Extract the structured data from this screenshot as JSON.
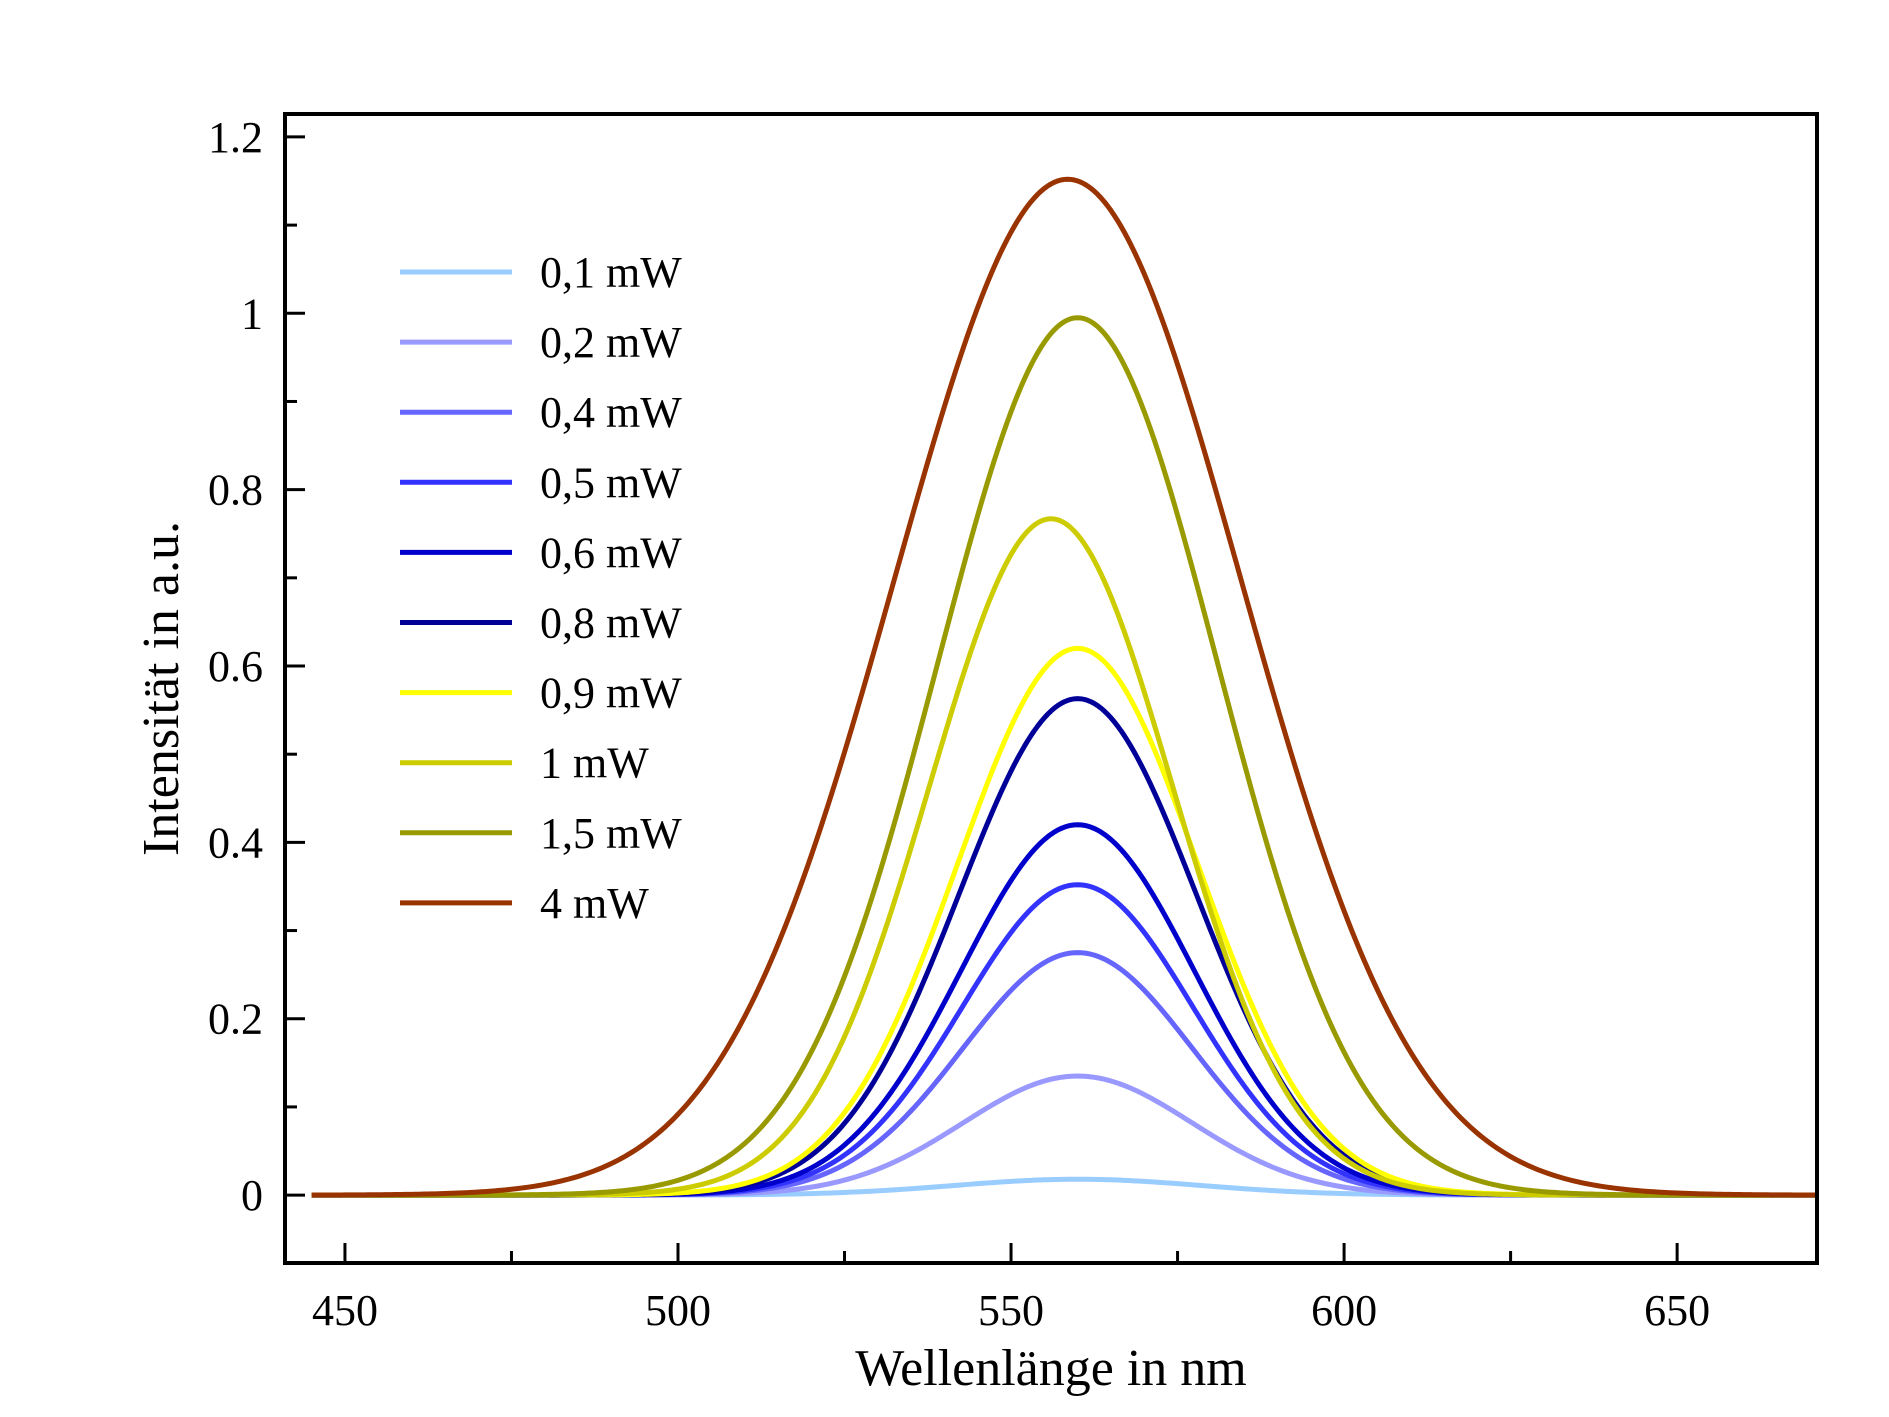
{
  "chart_data": {
    "type": "line",
    "title": "",
    "xlabel": "Wellenlänge in nm",
    "ylabel": "Intensität in a.u.",
    "xlim": [
      441,
      671
    ],
    "ylim": [
      -0.077,
      1.226
    ],
    "x_ticks": [
      450,
      500,
      550,
      600,
      650
    ],
    "x_minor_ticks": [
      475,
      525,
      575,
      625
    ],
    "y_ticks": [
      0,
      0.2,
      0.4,
      0.6,
      0.8,
      1,
      1.2
    ],
    "y_tick_labels": [
      "0",
      "0.2",
      "0.4",
      "0.6",
      "0.8",
      "1",
      "1.2"
    ],
    "y_minor_ticks": [
      0.1,
      0.3,
      0.5,
      0.7,
      0.9,
      1.1
    ],
    "grid": false,
    "legend_position": "upper-left",
    "series_model": "gaussian",
    "series": [
      {
        "name": "0,1 mW",
        "color": "#99ccff",
        "peak_x": 560,
        "peak_y": 0.018,
        "sigma": 18.5
      },
      {
        "name": "0,2 mW",
        "color": "#9999ff",
        "peak_x": 560,
        "peak_y": 0.135,
        "sigma": 17.2
      },
      {
        "name": "0,4 mW",
        "color": "#6666ff",
        "peak_x": 560,
        "peak_y": 0.275,
        "sigma": 17.2
      },
      {
        "name": "0,5 mW",
        "color": "#3333ff",
        "peak_x": 560,
        "peak_y": 0.352,
        "sigma": 17.3
      },
      {
        "name": "0,6 mW",
        "color": "#0000cc",
        "peak_x": 560,
        "peak_y": 0.42,
        "sigma": 17.5
      },
      {
        "name": "0,8 mW",
        "color": "#000099",
        "peak_x": 560,
        "peak_y": 0.563,
        "sigma": 17.8
      },
      {
        "name": "0,9 mW",
        "color": "#ffff00",
        "peak_x": 560,
        "peak_y": 0.62,
        "sigma": 18.0
      },
      {
        "name": "1 mW",
        "color": "#cccc00",
        "peak_x": 556,
        "peak_y": 0.767,
        "sigma": 18.2
      },
      {
        "name": "1,5 mW",
        "color": "#999900",
        "peak_x": 560,
        "peak_y": 0.995,
        "sigma": 21.0
      },
      {
        "name": "4 mW",
        "color": "#993300",
        "peak_x": 558.5,
        "peak_y": 1.152,
        "sigma": 26.0
      }
    ]
  }
}
